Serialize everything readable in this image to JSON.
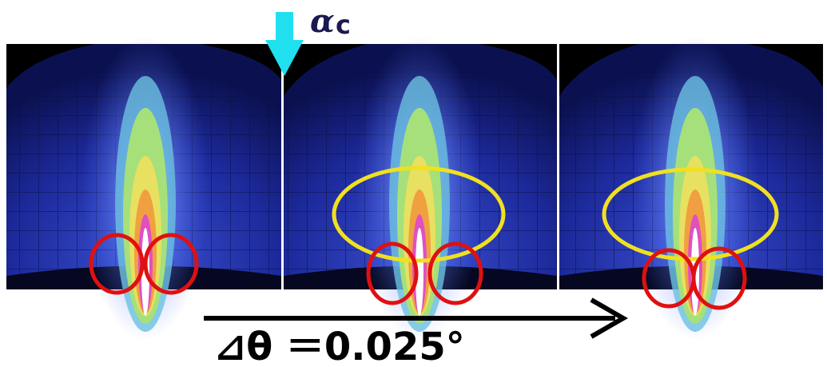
{
  "labels": {
    "alpha": "α",
    "c": "c",
    "step": "⊿θ ＝0.025°"
  }
}
